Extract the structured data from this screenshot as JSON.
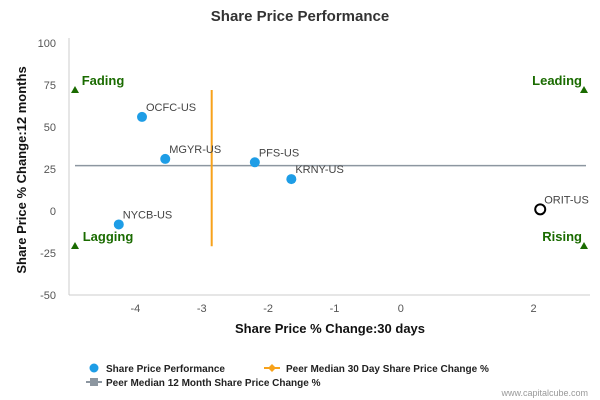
{
  "chart_data": {
    "type": "scatter",
    "title": "Share Price Performance",
    "xlabel": "Share Price % Change:30 days",
    "ylabel": "Share Price % Change:12 months",
    "xlim": [
      -5,
      2.85
    ],
    "ylim": [
      -50,
      100
    ],
    "x_ticks": [
      -4,
      -3,
      -2,
      -1,
      0,
      2
    ],
    "y_ticks": [
      100,
      75,
      50,
      25,
      0,
      -25,
      -50
    ],
    "grid": false,
    "legend_position": "bottom",
    "colors": {
      "points": "#1e9de6",
      "peer_30day": "#f7a21b",
      "peer_12month": "#8c96a0",
      "quadrant": "#1a6b00",
      "highlight_edge": "#000000"
    },
    "points": [
      {
        "label": "OCFC-US",
        "x": -3.9,
        "y": 56
      },
      {
        "label": "MGYR-US",
        "x": -3.55,
        "y": 31
      },
      {
        "label": "PFS-US",
        "x": -2.2,
        "y": 29
      },
      {
        "label": "KRNY-US",
        "x": -1.65,
        "y": 19
      },
      {
        "label": "NYCB-US",
        "x": -4.25,
        "y": -8
      },
      {
        "label": "ORIT-US",
        "x": 2.1,
        "y": 1,
        "highlight": true
      }
    ],
    "peer_median_30day": {
      "x": -2.85,
      "y_range": [
        -21,
        72
      ]
    },
    "peer_median_12month": {
      "y": 27
    },
    "quadrants": [
      {
        "text": "Fading",
        "position": "top-left"
      },
      {
        "text": "Leading",
        "position": "top-right"
      },
      {
        "text": "Lagging",
        "position": "bottom-left"
      },
      {
        "text": "Rising",
        "position": "bottom-right"
      }
    ],
    "legend": [
      {
        "text": "Share Price Performance",
        "marker": "dot"
      },
      {
        "text": "Peer Median 30 Day Share Price Change %",
        "marker": "orange-line"
      },
      {
        "text": "Peer Median 12 Month Share Price Change %",
        "marker": "gray-line"
      }
    ]
  },
  "credit": "www.capitalcube.com"
}
